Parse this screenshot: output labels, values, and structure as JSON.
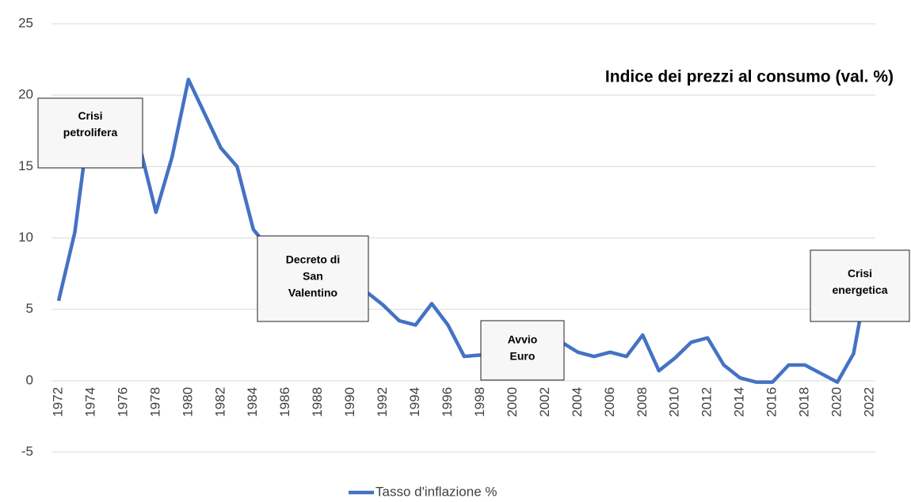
{
  "chart_data": {
    "type": "line",
    "title": "Indice dei prezzi al consumo (val. %)",
    "x": [
      1972,
      1973,
      1974,
      1975,
      1976,
      1977,
      1978,
      1979,
      1980,
      1981,
      1982,
      1983,
      1984,
      1985,
      1986,
      1987,
      1988,
      1989,
      1990,
      1991,
      1992,
      1993,
      1994,
      1995,
      1996,
      1997,
      1998,
      1999,
      2000,
      2001,
      2002,
      2003,
      2004,
      2005,
      2006,
      2007,
      2008,
      2009,
      2010,
      2011,
      2012,
      2013,
      2014,
      2015,
      2016,
      2017,
      2018,
      2019,
      2020,
      2021,
      2022
    ],
    "series": [
      {
        "name": "Tasso d'inflazione %",
        "color": "#4472c4",
        "values": [
          5.6,
          10.4,
          19.1,
          17.0,
          16.8,
          16.4,
          11.8,
          15.7,
          21.1,
          18.7,
          16.3,
          15.0,
          10.6,
          9.2,
          5.8,
          4.7,
          5.1,
          6.3,
          6.5,
          6.2,
          5.3,
          4.2,
          3.9,
          5.4,
          3.9,
          1.7,
          1.8,
          1.7,
          2.5,
          2.7,
          2.5,
          2.7,
          2.0,
          1.7,
          2.0,
          1.7,
          3.2,
          0.7,
          1.6,
          2.7,
          3.0,
          1.1,
          0.2,
          -0.1,
          -0.1,
          1.1,
          1.1,
          0.5,
          -0.1,
          1.9,
          8.1
        ]
      }
    ],
    "xlim": [
      1972,
      2022
    ],
    "xticks": [
      1972,
      1974,
      1976,
      1978,
      1980,
      1982,
      1984,
      1986,
      1988,
      1990,
      1992,
      1994,
      1996,
      1998,
      2000,
      2002,
      2004,
      2006,
      2008,
      2010,
      2012,
      2014,
      2016,
      2018,
      2020,
      2022
    ],
    "ylim": [
      -5,
      25
    ],
    "yticks": [
      -5,
      0,
      5,
      10,
      15,
      20,
      25
    ],
    "grid": true,
    "legend": "bottom",
    "annotations": [
      {
        "lines": [
          "Crisi",
          "petrolifera"
        ]
      },
      {
        "lines": [
          "Decreto di",
          "San",
          "Valentino"
        ]
      },
      {
        "lines": [
          "Avvio",
          "Euro"
        ]
      },
      {
        "lines": [
          "Crisi",
          "energetica"
        ]
      }
    ]
  }
}
